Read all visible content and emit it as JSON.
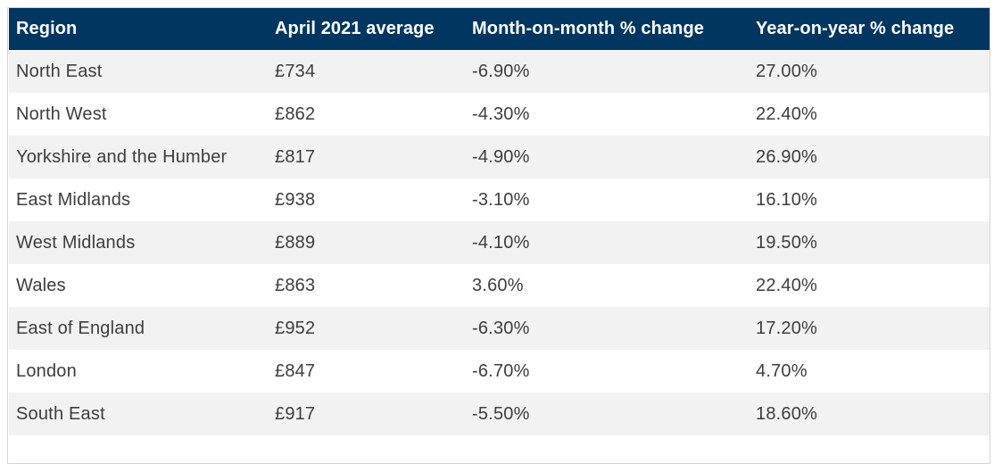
{
  "table": {
    "headers": [
      "Region",
      "April 2021 average",
      "Month-on-month % change",
      "Year-on-year % change"
    ],
    "rows": [
      [
        "North East",
        "£734",
        "-6.90%",
        "27.00%"
      ],
      [
        "North West",
        "£862",
        "-4.30%",
        "22.40%"
      ],
      [
        "Yorkshire and the Humber",
        "£817",
        "-4.90%",
        "26.90%"
      ],
      [
        "East Midlands",
        "£938",
        "-3.10%",
        "16.10%"
      ],
      [
        "West Midlands",
        "£889",
        "-4.10%",
        "19.50%"
      ],
      [
        "Wales",
        "£863",
        "3.60%",
        "22.40%"
      ],
      [
        "East of England",
        "£952",
        "-6.30%",
        "17.20%"
      ],
      [
        "London",
        "£847",
        "-6.70%",
        "4.70%"
      ],
      [
        "South East",
        "£917",
        "-5.50%",
        "18.60%"
      ]
    ]
  },
  "colors": {
    "header_background": "#003660",
    "header_text": "#ffffff",
    "row_stripe": "#f2f2f2",
    "row_plain": "#ffffff",
    "cell_text": "#3d3d3d"
  }
}
